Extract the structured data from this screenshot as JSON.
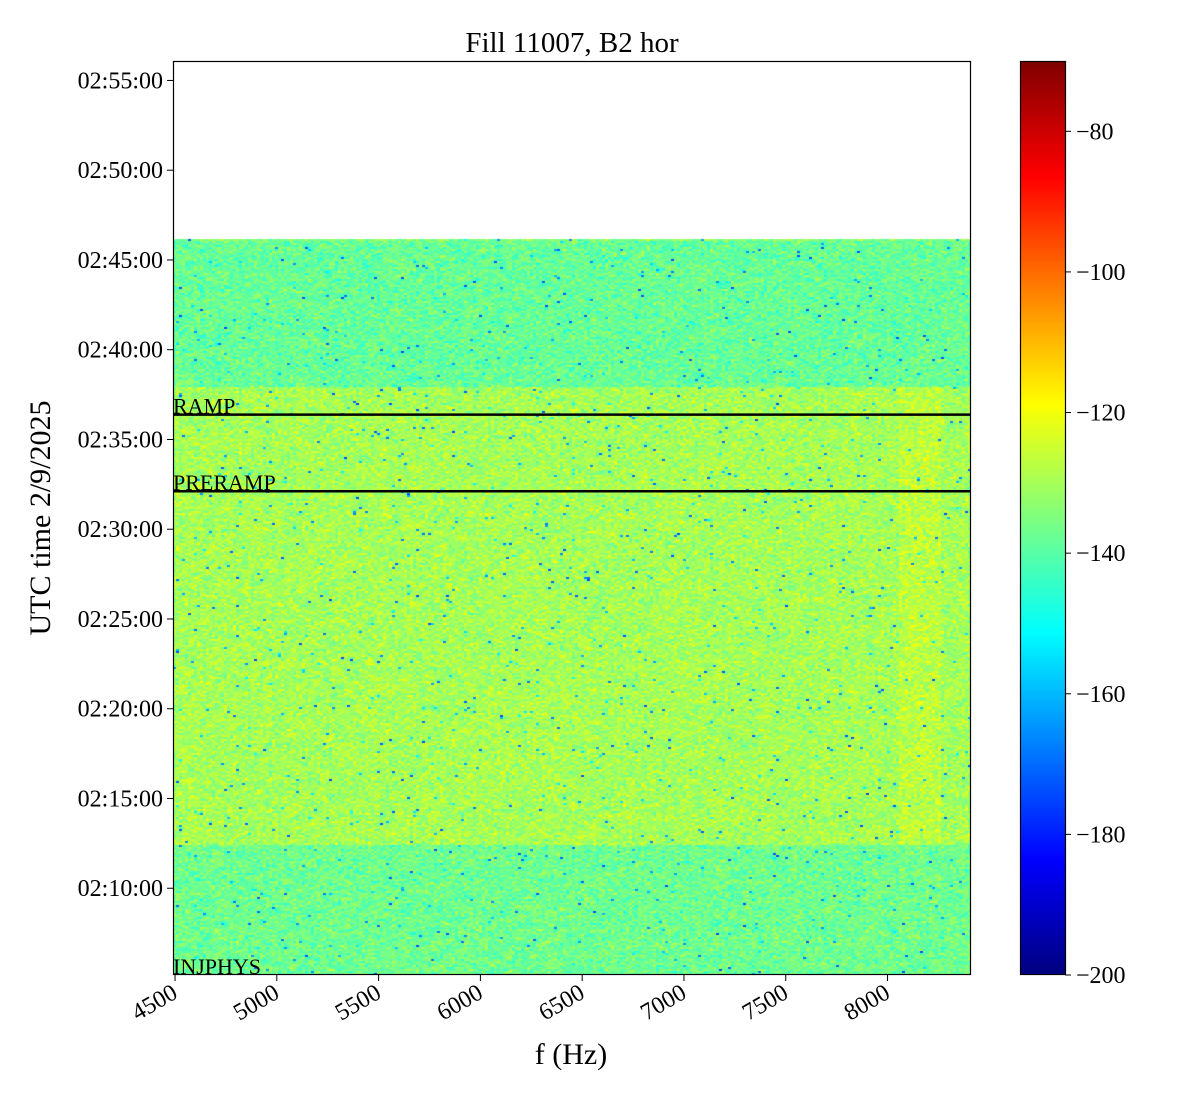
{
  "chart_data": {
    "type": "heatmap",
    "title": "Fill 11007, B2 hor",
    "xlabel": "f (Hz)",
    "ylabel": "UTC time 2/9/2025",
    "xlim": [
      4490,
      8410
    ],
    "ylim": [
      "02:05:10",
      "02:56:05"
    ],
    "x_ticks": [
      "4500",
      "5000",
      "5500",
      "6000",
      "6500",
      "7000",
      "7500",
      "8000"
    ],
    "y_ticks": [
      "02:10:00",
      "02:15:00",
      "02:20:00",
      "02:25:00",
      "02:30:00",
      "02:35:00",
      "02:40:00",
      "02:45:00",
      "02:50:00",
      "02:55:00"
    ],
    "data_time_range": [
      "02:05:10",
      "02:46:10"
    ],
    "colormap": "jet",
    "colorbar": {
      "min": -200,
      "max": -70,
      "ticks": [
        "-80",
        "-100",
        "-120",
        "-140",
        "-160",
        "-180",
        "-200"
      ]
    },
    "bands": [
      {
        "from": "02:05:10",
        "to": "02:12:30",
        "mean_level": -137
      },
      {
        "from": "02:12:30",
        "to": "02:38:00",
        "mean_level": -130
      },
      {
        "from": "02:38:00",
        "to": "02:46:10",
        "mean_level": -138
      }
    ],
    "feature_band_hz": [
      8050,
      8250
    ],
    "annotations": [
      {
        "label": "RAMP",
        "time": "02:36:23"
      },
      {
        "label": "PRERAMP",
        "time": "02:32:07"
      },
      {
        "label": "INJPHYS",
        "time": "02:05:10"
      }
    ],
    "grid": false
  }
}
